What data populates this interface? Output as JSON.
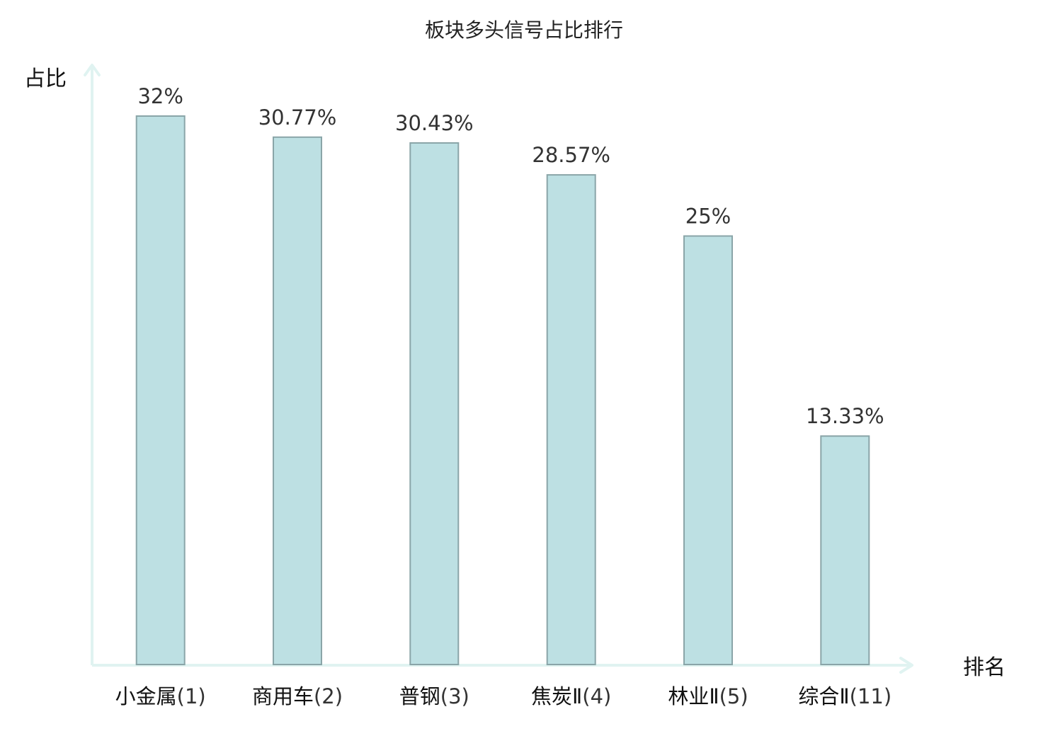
{
  "chart_data": {
    "type": "bar",
    "title": "板块多头信号占比排行",
    "xlabel": "排名",
    "ylabel": "占比",
    "ylim": [
      0,
      32
    ],
    "grid": false,
    "categories": [
      "小金属(1)",
      "商用车(2)",
      "普钢(3)",
      "焦炭Ⅱ(4)",
      "林业Ⅱ(5)",
      "综合Ⅱ(11)"
    ],
    "category_names": [
      "小金属",
      "商用车",
      "普钢",
      "焦炭Ⅱ",
      "林业Ⅱ",
      "综合Ⅱ"
    ],
    "category_ranks": [
      "(1)",
      "(2)",
      "(3)",
      "(4)",
      "(5)",
      "(11)"
    ],
    "highlight_index": 5,
    "values": [
      32,
      30.77,
      30.43,
      28.57,
      25,
      13.33
    ],
    "value_labels": [
      "32%",
      "30.77%",
      "30.43%",
      "28.57%",
      "25%",
      "13.33%"
    ]
  },
  "colors": {
    "bar_fill": "#bde0e3",
    "bar_stroke": "#8aa5a8",
    "axis": "#e0f3f1",
    "highlight_label": "#d81e1e"
  }
}
